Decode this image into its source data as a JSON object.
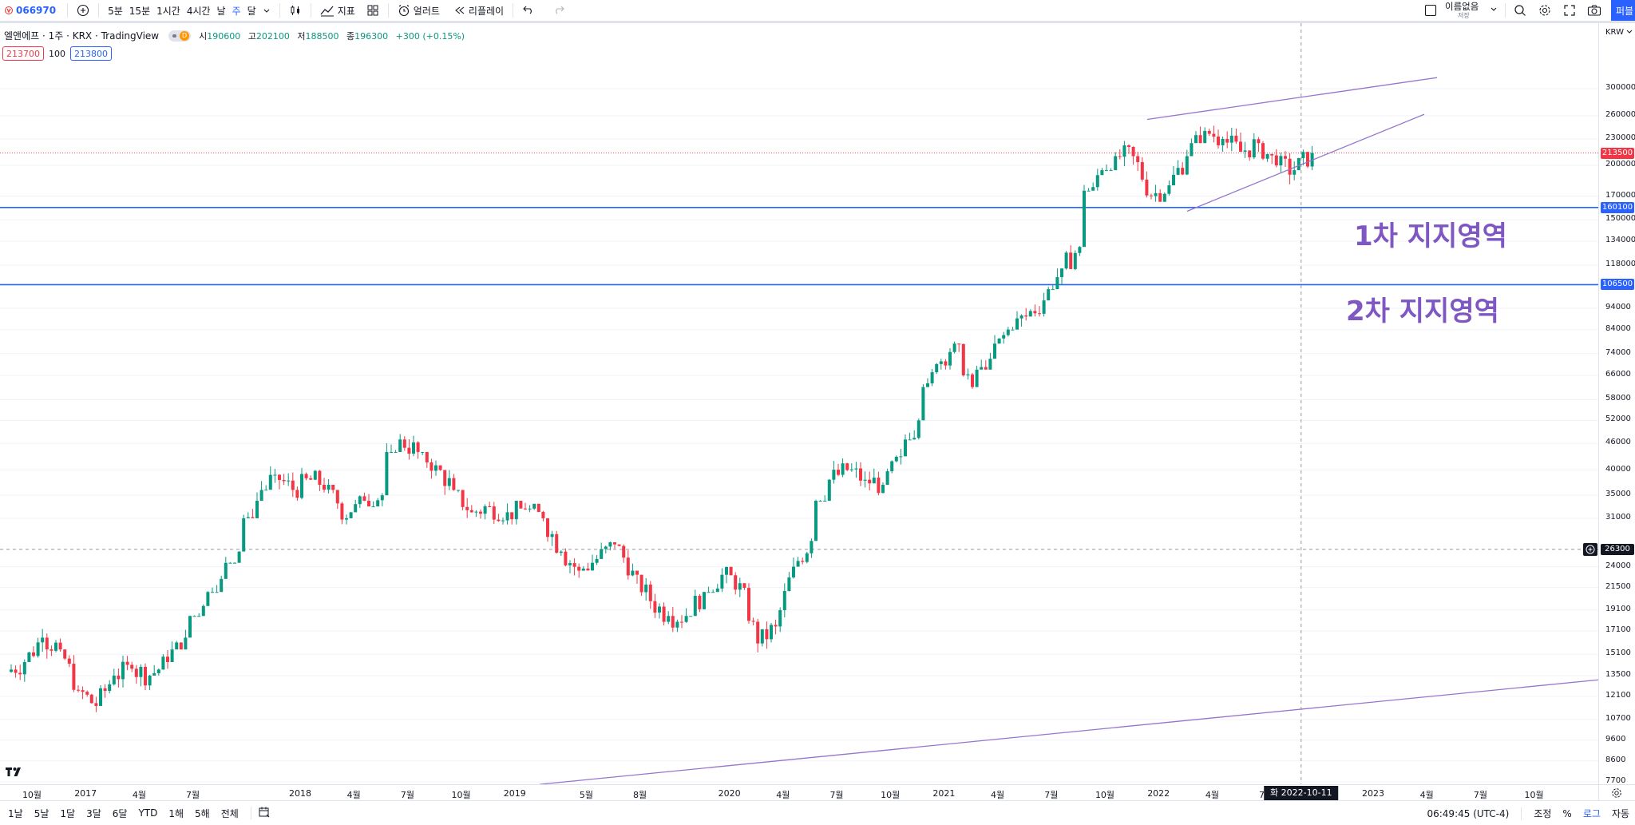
{
  "toolbar": {
    "symbol": "066970",
    "intervals": [
      "5분",
      "15분",
      "1시간",
      "4시간",
      "날",
      "주",
      "달"
    ],
    "active_interval": "주",
    "indicators_label": "지표",
    "alert_label": "얼러트",
    "replay_label": "리플레이",
    "layout_name": "이름없음",
    "layout_sub": "저장",
    "publish_label": "퍼블"
  },
  "legend": {
    "title": "엘앤에프 · 1주 · KRX · TradingView",
    "badge_letter": "D",
    "ohlc": [
      {
        "k": "시",
        "v": "190600"
      },
      {
        "k": "고",
        "v": "202100"
      },
      {
        "k": "저",
        "v": "188500"
      },
      {
        "k": "종",
        "v": "196300"
      }
    ],
    "change": "+300 (+0.15%)"
  },
  "alerts": {
    "sell": "213700",
    "qty": "100",
    "buy": "213800"
  },
  "annotations": {
    "support1": "1차 지지영역",
    "support2": "2차 지지영역"
  },
  "price_axis": {
    "currency": "KRW",
    "ticks": [
      "300000",
      "260000",
      "230000",
      "200000",
      "170000",
      "150000",
      "134000",
      "118000",
      "94000",
      "84000",
      "74000",
      "66000",
      "58000",
      "52000",
      "46000",
      "40000",
      "35000",
      "31000",
      "24000",
      "21500",
      "19100",
      "17100",
      "15100",
      "13500",
      "12100",
      "10700",
      "9600",
      "8600",
      "7700"
    ],
    "current_price": "213500",
    "support1_price": "160100",
    "support2_price": "106500",
    "crosshair_price": "26300"
  },
  "time_axis": {
    "ticks": [
      "10월",
      "2017",
      "4월",
      "7월",
      "2018",
      "4월",
      "7월",
      "10월",
      "2019",
      "5월",
      "8월",
      "2020",
      "4월",
      "7월",
      "10월",
      "2021",
      "4월",
      "7월",
      "10월",
      "2022",
      "4월",
      "7월",
      "2023",
      "4월",
      "7월",
      "10월"
    ],
    "crosshair_label": "화 2022-10-11"
  },
  "bottom_bar": {
    "ranges": [
      "1날",
      "5날",
      "1달",
      "3달",
      "6달",
      "YTD",
      "1해",
      "5해",
      "전체"
    ],
    "clock": "06:49:45 (UTC-4)",
    "options": [
      "조정",
      "%",
      "로그",
      "자동"
    ],
    "active_option": "로그"
  },
  "colors": {
    "up": "#089981",
    "down": "#f23645",
    "accent": "#2962ff",
    "trendline": "#9575cd",
    "annotation": "#7e57c2"
  },
  "chart_data": {
    "type": "candlestick",
    "symbol": "엘앤에프",
    "interval": "1주",
    "scale": "log",
    "x": [
      "2016-10",
      "2016-11",
      "2016-12",
      "2017-01",
      "2017-02",
      "2017-03",
      "2017-04",
      "2017-05",
      "2017-06",
      "2017-07",
      "2017-08",
      "2017-09",
      "2017-10",
      "2017-11",
      "2017-12",
      "2018-01",
      "2018-02",
      "2018-03",
      "2018-04",
      "2018-05",
      "2018-06",
      "2018-07",
      "2018-08",
      "2018-09",
      "2018-10",
      "2018-11",
      "2018-12",
      "2019-01",
      "2019-02",
      "2019-03",
      "2019-04",
      "2019-05",
      "2019-06",
      "2019-07",
      "2019-08",
      "2019-09",
      "2019-10",
      "2019-11",
      "2019-12",
      "2020-01",
      "2020-02",
      "2020-03",
      "2020-04",
      "2020-05",
      "2020-06",
      "2020-07",
      "2020-08",
      "2020-09",
      "2020-10",
      "2020-11",
      "2020-12",
      "2021-01",
      "2021-02",
      "2021-03",
      "2021-04",
      "2021-05",
      "2021-06",
      "2021-07",
      "2021-08",
      "2021-09",
      "2021-10",
      "2021-11",
      "2021-12",
      "2022-01",
      "2022-02",
      "2022-03",
      "2022-04",
      "2022-05",
      "2022-06",
      "2022-07",
      "2022-08",
      "2022-09",
      "2022-10"
    ],
    "close": [
      14500,
      16500,
      15500,
      12500,
      11500,
      13500,
      14000,
      13500,
      14500,
      16500,
      19500,
      22500,
      26000,
      34000,
      39000,
      36000,
      38000,
      37000,
      31000,
      34000,
      35000,
      47000,
      44000,
      41000,
      36000,
      32000,
      33000,
      32000,
      32500,
      31000,
      26000,
      23500,
      25000,
      27000,
      23500,
      20000,
      18500,
      18500,
      21000,
      23000,
      22000,
      16000,
      17500,
      24000,
      27500,
      38000,
      40000,
      38000,
      37000,
      43000,
      52000,
      70000,
      78000,
      62000,
      72000,
      84000,
      90000,
      98000,
      116000,
      130000,
      190000,
      210000,
      210000,
      170000,
      180000,
      210000,
      240000,
      230000,
      215000,
      225000,
      200000,
      195000,
      213500
    ],
    "high": [
      15500,
      17500,
      17000,
      15500,
      13000,
      14000,
      15000,
      14500,
      15500,
      17500,
      20500,
      24000,
      28000,
      36000,
      42000,
      40000,
      41000,
      40000,
      36000,
      37000,
      38000,
      50000,
      48000,
      44000,
      40000,
      36000,
      35000,
      34500,
      34000,
      33500,
      29000,
      26500,
      27000,
      31000,
      27000,
      23000,
      21000,
      21000,
      23000,
      25000,
      24000,
      22000,
      19500,
      26000,
      30000,
      42000,
      46000,
      44000,
      41000,
      46000,
      58000,
      75000,
      82000,
      78000,
      76000,
      88000,
      95000,
      104000,
      124000,
      142000,
      200000,
      250000,
      240000,
      215000,
      200000,
      235000,
      290000,
      260000,
      250000,
      240000,
      230000,
      225000,
      230000
    ],
    "low": [
      13000,
      14500,
      14500,
      12000,
      10700,
      12000,
      12500,
      12500,
      13500,
      15500,
      18500,
      21000,
      24500,
      31000,
      36000,
      33000,
      34000,
      31000,
      29000,
      32000,
      33000,
      44000,
      40000,
      35000,
      33000,
      30000,
      30500,
      30000,
      30000,
      27000,
      23500,
      22000,
      23500,
      25000,
      21000,
      18500,
      17500,
      17000,
      18500,
      21000,
      15000,
      12800,
      15500,
      17000,
      24000,
      34000,
      37000,
      36000,
      35000,
      38000,
      47000,
      62000,
      68000,
      58000,
      68000,
      78000,
      84000,
      90000,
      104000,
      115000,
      175000,
      195000,
      190000,
      155000,
      165000,
      190000,
      225000,
      215000,
      200000,
      205000,
      175000,
      180000,
      195000
    ]
  }
}
